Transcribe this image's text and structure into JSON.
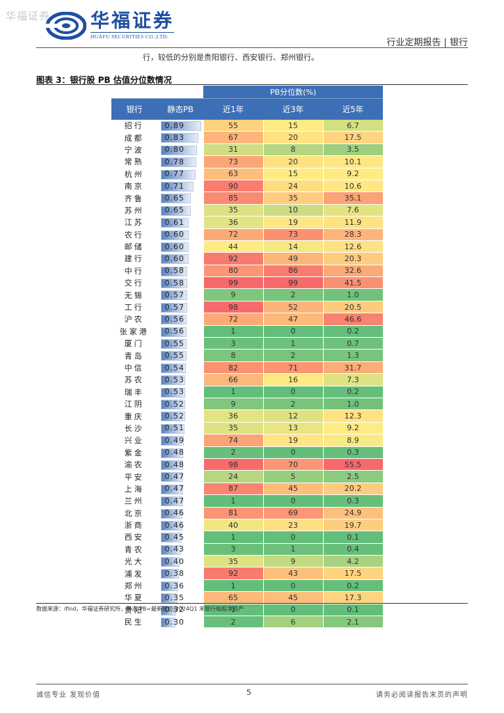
{
  "header": {
    "watermark": "华福证券",
    "logo_cn": "华福证券",
    "logo_en": "HUAFU SECURITIES CO.,LTD.",
    "report_type": "行业定期报告 | 银行"
  },
  "intro_text": "行，较低的分别是贵阳银行、西安银行、郑州银行。",
  "figure": {
    "title": "图表 3：银行股 PB 估值分位数情况",
    "group_header": "PB分位数(%)",
    "col_bank": "银行",
    "col_pb": "静态PB",
    "col_1y": "近1年",
    "col_3y": "近3年",
    "col_5y": "近5年",
    "pb_max": 0.89
  },
  "rows": [
    {
      "bank": "招行",
      "pb": "0.89",
      "y1": "55",
      "y3": "15",
      "y5": "6.7"
    },
    {
      "bank": "成都",
      "pb": "0.83",
      "y1": "67",
      "y3": "20",
      "y5": "17.5"
    },
    {
      "bank": "宁波",
      "pb": "0.80",
      "y1": "31",
      "y3": "8",
      "y5": "3.5"
    },
    {
      "bank": "常熟",
      "pb": "0.78",
      "y1": "73",
      "y3": "20",
      "y5": "10.1"
    },
    {
      "bank": "杭州",
      "pb": "0.77",
      "y1": "63",
      "y3": "15",
      "y5": "9.2"
    },
    {
      "bank": "南京",
      "pb": "0.71",
      "y1": "90",
      "y3": "24",
      "y5": "10.6"
    },
    {
      "bank": "齐鲁",
      "pb": "0.65",
      "y1": "85",
      "y3": "35",
      "y5": "35.1"
    },
    {
      "bank": "苏州",
      "pb": "0.65",
      "y1": "35",
      "y3": "10",
      "y5": "7.6"
    },
    {
      "bank": "江苏",
      "pb": "0.61",
      "y1": "36",
      "y3": "19",
      "y5": "11.9"
    },
    {
      "bank": "农行",
      "pb": "0.60",
      "y1": "72",
      "y3": "73",
      "y5": "28.3"
    },
    {
      "bank": "邮储",
      "pb": "0.60",
      "y1": "44",
      "y3": "14",
      "y5": "12.6"
    },
    {
      "bank": "建行",
      "pb": "0.60",
      "y1": "92",
      "y3": "49",
      "y5": "20.3"
    },
    {
      "bank": "中行",
      "pb": "0.58",
      "y1": "80",
      "y3": "86",
      "y5": "32.6"
    },
    {
      "bank": "交行",
      "pb": "0.58",
      "y1": "99",
      "y3": "99",
      "y5": "41.5"
    },
    {
      "bank": "无锡",
      "pb": "0.57",
      "y1": "9",
      "y3": "2",
      "y5": "1.0"
    },
    {
      "bank": "工行",
      "pb": "0.57",
      "y1": "98",
      "y3": "52",
      "y5": "20.5"
    },
    {
      "bank": "沪农",
      "pb": "0.56",
      "y1": "72",
      "y3": "47",
      "y5": "46.6"
    },
    {
      "bank": "张家港",
      "pb": "0.56",
      "y1": "1",
      "y3": "0",
      "y5": "0.2"
    },
    {
      "bank": "厦门",
      "pb": "0.55",
      "y1": "3",
      "y3": "1",
      "y5": "0.7"
    },
    {
      "bank": "青岛",
      "pb": "0.55",
      "y1": "8",
      "y3": "2",
      "y5": "1.3"
    },
    {
      "bank": "中信",
      "pb": "0.54",
      "y1": "82",
      "y3": "71",
      "y5": "31.7"
    },
    {
      "bank": "苏农",
      "pb": "0.53",
      "y1": "66",
      "y3": "16",
      "y5": "7.3"
    },
    {
      "bank": "瑞丰",
      "pb": "0.53",
      "y1": "1",
      "y3": "0",
      "y5": "0.2"
    },
    {
      "bank": "江阴",
      "pb": "0.52",
      "y1": "9",
      "y3": "2",
      "y5": "1.0"
    },
    {
      "bank": "重庆",
      "pb": "0.52",
      "y1": "36",
      "y3": "12",
      "y5": "12.3"
    },
    {
      "bank": "长沙",
      "pb": "0.51",
      "y1": "35",
      "y3": "13",
      "y5": "9.2"
    },
    {
      "bank": "兴业",
      "pb": "0.49",
      "y1": "74",
      "y3": "19",
      "y5": "8.9"
    },
    {
      "bank": "紫金",
      "pb": "0.48",
      "y1": "2",
      "y3": "0",
      "y5": "0.3"
    },
    {
      "bank": "渝农",
      "pb": "0.48",
      "y1": "98",
      "y3": "70",
      "y5": "55.5"
    },
    {
      "bank": "平安",
      "pb": "0.47",
      "y1": "24",
      "y3": "5",
      "y5": "2.5"
    },
    {
      "bank": "上海",
      "pb": "0.47",
      "y1": "87",
      "y3": "45",
      "y5": "20.2"
    },
    {
      "bank": "兰州",
      "pb": "0.47",
      "y1": "1",
      "y3": "0",
      "y5": "0.3"
    },
    {
      "bank": "北京",
      "pb": "0.46",
      "y1": "81",
      "y3": "69",
      "y5": "24.9"
    },
    {
      "bank": "浙商",
      "pb": "0.46",
      "y1": "40",
      "y3": "23",
      "y5": "19.7"
    },
    {
      "bank": "西安",
      "pb": "0.45",
      "y1": "1",
      "y3": "0",
      "y5": "0.1"
    },
    {
      "bank": "青农",
      "pb": "0.43",
      "y1": "3",
      "y3": "1",
      "y5": "0.4"
    },
    {
      "bank": "光大",
      "pb": "0.40",
      "y1": "35",
      "y3": "9",
      "y5": "4.2"
    },
    {
      "bank": "浦发",
      "pb": "0.38",
      "y1": "92",
      "y3": "43",
      "y5": "17.5"
    },
    {
      "bank": "郑州",
      "pb": "0.36",
      "y1": "1",
      "y3": "0",
      "y5": "0.2"
    },
    {
      "bank": "华夏",
      "pb": "0.35",
      "y1": "65",
      "y3": "45",
      "y5": "17.3"
    },
    {
      "bank": "贵阳",
      "pb": "0.32",
      "y1": "1",
      "y3": "0",
      "y5": "0.1"
    },
    {
      "bank": "民生",
      "pb": "0.30",
      "y1": "2",
      "y3": "6",
      "y5": "2.1"
    }
  ],
  "source_note": "数据来源：ifind，华福证券研究所，静态 PB=最新股价/2024Q1 末银行每股净资产",
  "footer": {
    "left": "诚信专业  发现价值",
    "page": "5",
    "right": "请务必阅读报告末页的声明"
  },
  "colors": {
    "brand_blue": "#1f4fa0",
    "header_blue": "#3d6fb6",
    "scale_low": "#63be7b",
    "scale_mid": "#ffeb84",
    "scale_high": "#f8696b"
  }
}
